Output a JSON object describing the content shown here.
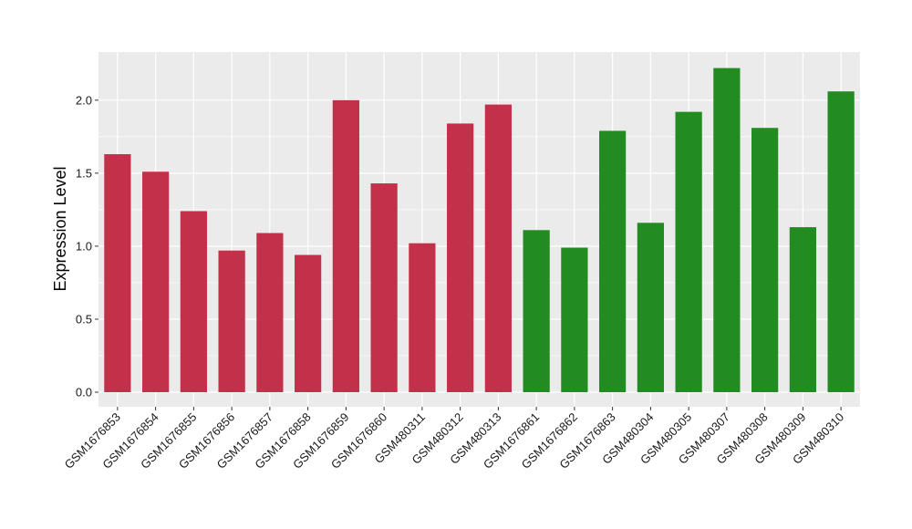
{
  "chart_data": {
    "type": "bar",
    "title": "",
    "xlabel": "",
    "ylabel": "Expression Level",
    "ylim": [
      -0.1,
      2.33
    ],
    "yticks": [
      "0.0",
      "0.5",
      "1.0",
      "1.5",
      "2.0"
    ],
    "grid": true,
    "legend": "none",
    "colors": {
      "group_a": "#c3304a",
      "group_b": "#228b22",
      "panel": "#ebebeb",
      "gridline": "#ffffff"
    },
    "categories": [
      "GSM1676853",
      "GSM1676854",
      "GSM1676855",
      "GSM1676856",
      "GSM1676857",
      "GSM1676858",
      "GSM1676859",
      "GSM1676860",
      "GSM480311",
      "GSM480312",
      "GSM480313",
      "GSM1676861",
      "GSM1676862",
      "GSM1676863",
      "GSM480304",
      "GSM480305",
      "GSM480307",
      "GSM480308",
      "GSM480309",
      "GSM480310"
    ],
    "values": [
      1.63,
      1.51,
      1.24,
      0.97,
      1.09,
      0.94,
      2.0,
      1.43,
      1.02,
      1.84,
      1.97,
      1.11,
      0.99,
      1.79,
      1.16,
      1.92,
      2.22,
      1.81,
      1.13,
      2.06
    ],
    "groups": [
      "a",
      "a",
      "a",
      "a",
      "a",
      "a",
      "a",
      "a",
      "a",
      "a",
      "a",
      "b",
      "b",
      "b",
      "b",
      "b",
      "b",
      "b",
      "b",
      "b"
    ]
  }
}
